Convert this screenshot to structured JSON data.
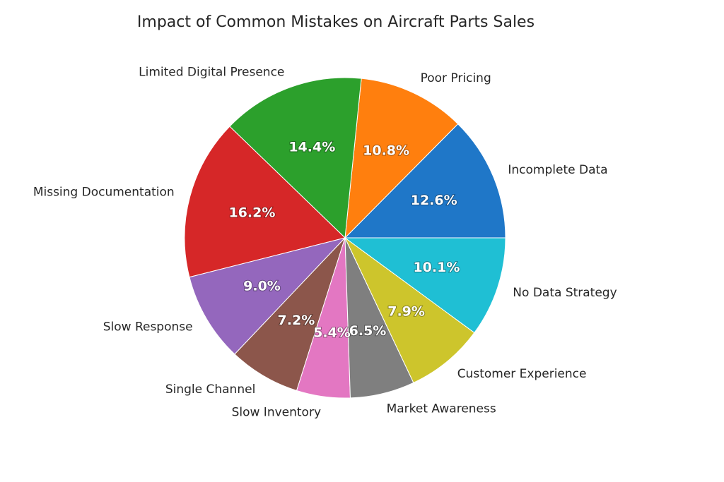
{
  "chart_data": {
    "type": "pie",
    "title": "Impact of Common Mistakes on Aircraft Parts Sales",
    "categories": [
      "Incomplete Data",
      "Poor Pricing",
      "Limited Digital Presence",
      "Missing Documentation",
      "Slow Response",
      "Single Channel",
      "Slow Inventory",
      "Market Awareness",
      "Customer Experience",
      "No Data Strategy"
    ],
    "values": [
      12.6,
      10.8,
      14.4,
      16.2,
      9.0,
      7.2,
      5.4,
      6.5,
      7.9,
      10.1
    ],
    "value_labels": [
      "12.6%",
      "10.8%",
      "14.4%",
      "16.2%",
      "9.0%",
      "7.2%",
      "5.4%",
      "6.5%",
      "7.9%",
      "10.1%"
    ],
    "colors": [
      "#1f77c8",
      "#ff7f0e",
      "#2ca02c",
      "#d62728",
      "#9467bd",
      "#8c564b",
      "#e377c2",
      "#7f7f7f",
      "#cdc52c",
      "#1fbfd4"
    ],
    "start_angle_deg": 0,
    "direction": "counterclockwise",
    "legend": "none"
  }
}
